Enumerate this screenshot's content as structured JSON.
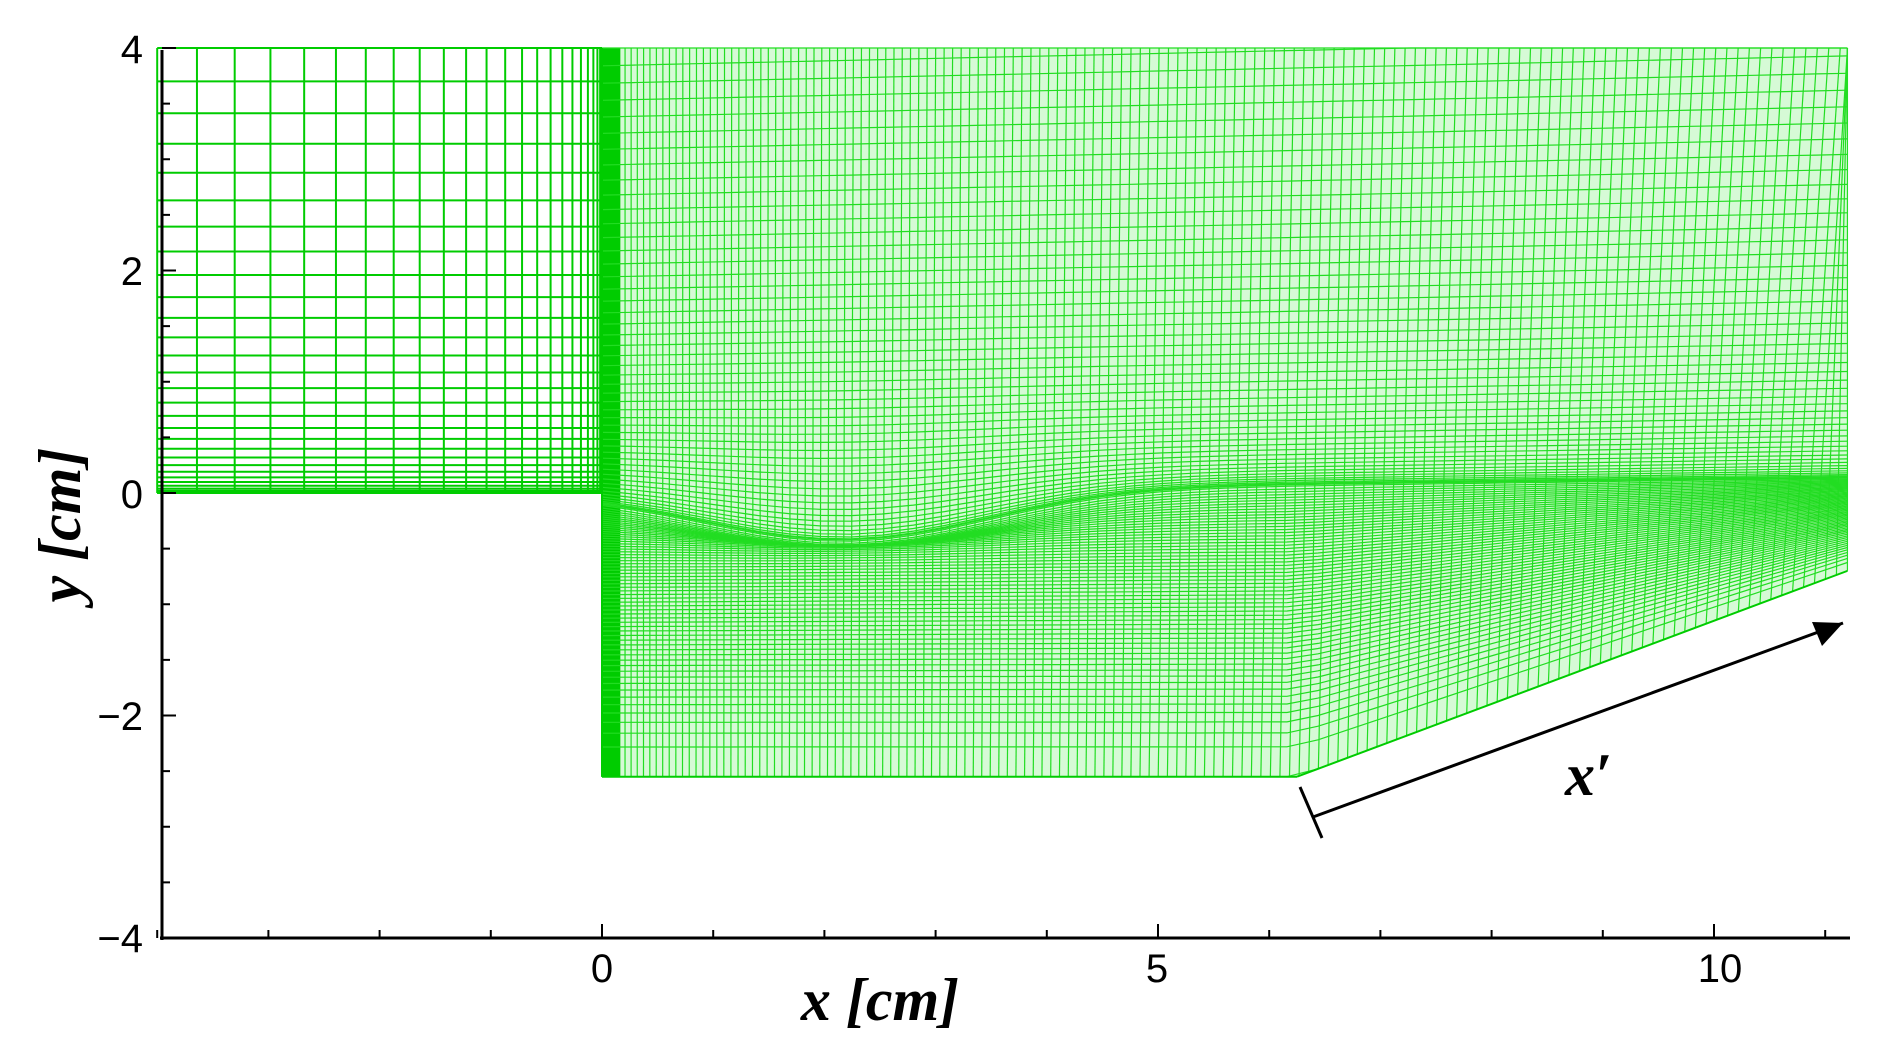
{
  "chart_data": {
    "type": "mesh",
    "xlabel": "x [cm]",
    "ylabel": "y [cm]",
    "xlim": [
      -4,
      11.2
    ],
    "ylim": [
      -4,
      4
    ],
    "x_ticks": [
      "0",
      "5",
      "10"
    ],
    "y_ticks": [
      "4",
      "2",
      "0",
      "−2",
      "−4"
    ],
    "annotation": "x′",
    "geometry": {
      "inlet_floor_y": 0,
      "step_x": 0,
      "cavity_floor_y": -2.55,
      "ramp_start": [
        6.25,
        -2.55
      ],
      "ramp_end": [
        11.2,
        -0.7
      ],
      "top_y": 4
    },
    "colors": {
      "mesh": "#00cc00",
      "axis": "#000000"
    }
  }
}
